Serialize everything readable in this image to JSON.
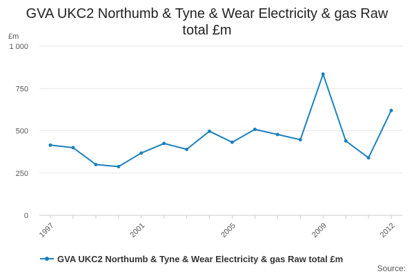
{
  "title_lines": [
    "GVA UKC2 Northumb & Tyne & Wear Electricity & gas Raw",
    "total £m"
  ],
  "source_label": "Source:",
  "colors": {
    "series": "#1a80bd",
    "grid": "#e6e6e6",
    "axis": "#cccccc"
  },
  "chart_data": {
    "type": "line",
    "title": "GVA UKC2 Northumb & Tyne & Wear Electricity & gas Raw total £m",
    "ylabel": "£m",
    "xlabel": "",
    "ylim": [
      0,
      1000
    ],
    "y_ticks": [
      0,
      250,
      500,
      750,
      1000
    ],
    "y_tick_labels": [
      "0",
      "250",
      "500",
      "750",
      "1 000"
    ],
    "x_tick_labels": [
      "1997",
      "2001",
      "2005",
      "2009",
      "2012"
    ],
    "grid": true,
    "legend_position": "bottom-left",
    "x": [
      1997,
      1998,
      1999,
      2000,
      2001,
      2002,
      2003,
      2004,
      2005,
      2006,
      2007,
      2008,
      2009,
      2010,
      2011,
      2012
    ],
    "series": [
      {
        "name": "GVA UKC2 Northumb & Tyne & Wear Electricity & gas Raw total £m",
        "values": [
          415,
          400,
          300,
          288,
          368,
          425,
          390,
          497,
          432,
          508,
          478,
          447,
          835,
          440,
          340,
          620
        ]
      }
    ]
  }
}
